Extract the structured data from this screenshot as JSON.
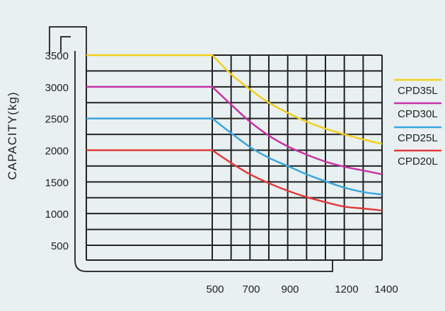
{
  "chart_data": {
    "type": "line",
    "title": "",
    "xlabel": "",
    "ylabel": "CAPACITY(kg)",
    "x_ticks": [
      500,
      700,
      900,
      1200,
      1400
    ],
    "y_ticks": [
      500,
      1000,
      1500,
      2000,
      2500,
      3000,
      3500
    ],
    "xlim": [
      0,
      1400
    ],
    "ylim": [
      500,
      3500
    ],
    "grid": true,
    "legend_position": "right",
    "series": [
      {
        "name": "CPD35L",
        "color": "#f1cf1f",
        "points": [
          [
            0,
            3500
          ],
          [
            500,
            3500
          ],
          [
            600,
            3200
          ],
          [
            700,
            2960
          ],
          [
            800,
            2750
          ],
          [
            900,
            2590
          ],
          [
            1000,
            2450
          ],
          [
            1100,
            2340
          ],
          [
            1200,
            2250
          ],
          [
            1300,
            2170
          ],
          [
            1400,
            2100
          ]
        ]
      },
      {
        "name": "CPD30L",
        "color": "#c633a8",
        "points": [
          [
            0,
            3000
          ],
          [
            500,
            3000
          ],
          [
            600,
            2720
          ],
          [
            700,
            2450
          ],
          [
            800,
            2230
          ],
          [
            900,
            2060
          ],
          [
            1000,
            1930
          ],
          [
            1100,
            1820
          ],
          [
            1200,
            1740
          ],
          [
            1300,
            1680
          ],
          [
            1400,
            1620
          ]
        ]
      },
      {
        "name": "CPD25L",
        "color": "#3aa6e0",
        "points": [
          [
            0,
            2500
          ],
          [
            500,
            2500
          ],
          [
            600,
            2270
          ],
          [
            700,
            2050
          ],
          [
            800,
            1880
          ],
          [
            900,
            1750
          ],
          [
            1000,
            1620
          ],
          [
            1100,
            1510
          ],
          [
            1200,
            1410
          ],
          [
            1300,
            1340
          ],
          [
            1400,
            1300
          ]
        ]
      },
      {
        "name": "CPD20L",
        "color": "#e23a3a",
        "points": [
          [
            0,
            2000
          ],
          [
            500,
            2000
          ],
          [
            600,
            1800
          ],
          [
            700,
            1620
          ],
          [
            800,
            1480
          ],
          [
            900,
            1360
          ],
          [
            1000,
            1260
          ],
          [
            1100,
            1180
          ],
          [
            1200,
            1110
          ],
          [
            1300,
            1080
          ],
          [
            1400,
            1050
          ]
        ]
      }
    ]
  }
}
